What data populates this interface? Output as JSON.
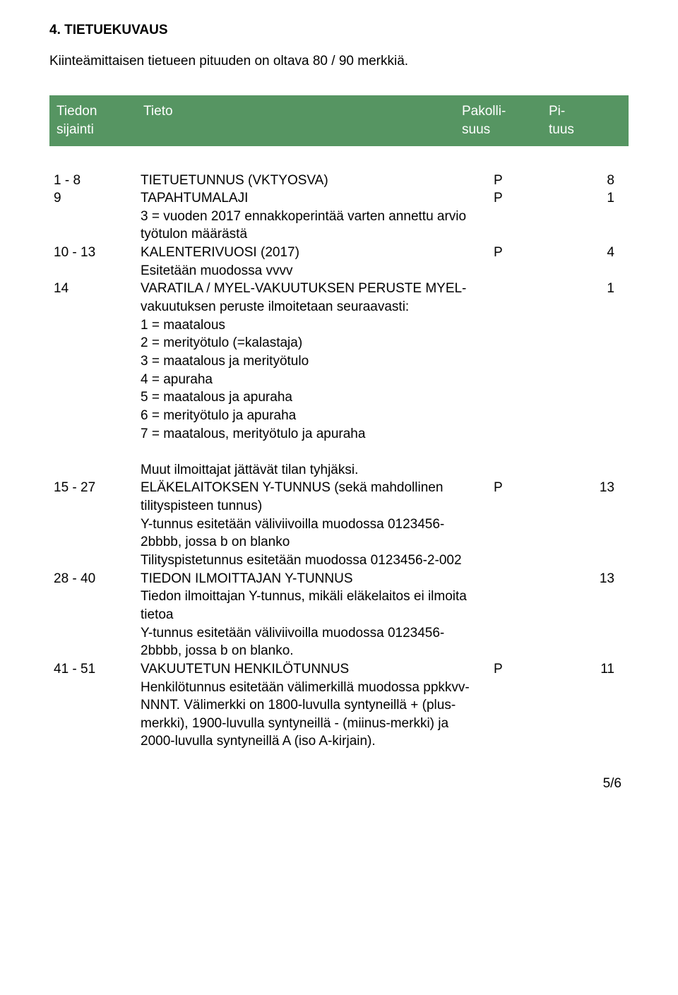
{
  "heading": "4.  TIETUEKUVAUS",
  "intro": "Kiinteämittaisen tietueen pituuden on oltava 80 / 90 merkkiä.",
  "header": {
    "col1_l1": "Tiedon",
    "col1_l2": "sijainti",
    "col2": "Tieto",
    "col3_l1": "Pakolli-",
    "col3_l2": "suus",
    "col4_l1": "Pi-",
    "col4_l2": "tuus"
  },
  "rows": [
    {
      "pos": "1 - 8",
      "desc": "TIETUETUNNUS (VKTYOSVA)",
      "pak": "P",
      "len": "8"
    },
    {
      "pos": "9",
      "desc": "TAPAHTUMALAJI\n3 = vuoden 2017 ennakkoperintää varten annettu arvio työtulon määrästä",
      "pak": "P",
      "len": "1"
    },
    {
      "pos": "10 - 13",
      "desc": "KALENTERIVUOSI (2017)\nEsitetään muodossa vvvv",
      "pak": "P",
      "len": "4"
    },
    {
      "pos": "14",
      "desc": "VARATILA / MYEL-VAKUUTUKSEN PERUSTE MYEL-vakuutuksen peruste ilmoitetaan seuraavasti:\n1 = maatalous\n2 = merityötulo (=kalastaja)\n3 = maatalous ja merityötulo\n4 = apuraha\n5 = maatalous ja apuraha\n6 = merityötulo ja apuraha\n7 = maatalous, merityötulo ja apuraha\n\nMuut ilmoittajat jättävät tilan tyhjäksi.",
      "pak": "",
      "len": "1"
    },
    {
      "pos": "15 - 27",
      "desc": "ELÄKELAITOKSEN Y-TUNNUS (sekä mahdollinen tilityspisteen tunnus)\nY-tunnus esitetään väliviivoilla muodossa 0123456-2bbbb, jossa b on blanko\nTilityspistetunnus esitetään muodossa 0123456-2-002",
      "pak": "P",
      "len": "13"
    },
    {
      "pos": "28 - 40",
      "desc": "TIEDON ILMOITTAJAN Y-TUNNUS\nTiedon ilmoittajan Y-tunnus, mikäli eläkelaitos ei ilmoita tietoa\nY-tunnus esitetään väliviivoilla muodossa 0123456-2bbbb, jossa b on blanko.",
      "pak": "",
      "len": "13"
    },
    {
      "pos": "41 - 51",
      "desc": "VAKUUTETUN HENKILÖTUNNUS\nHenkilötunnus esitetään välimerkillä muodossa ppkkvv-NNNT. Välimerkki on 1800-luvulla syntyneillä + (plus-merkki), 1900-luvulla syntyneillä - (miinus-merkki) ja 2000-luvulla syntyneillä A (iso A-kirjain).",
      "pak": "P",
      "len": "11"
    }
  ],
  "page": "5/6"
}
